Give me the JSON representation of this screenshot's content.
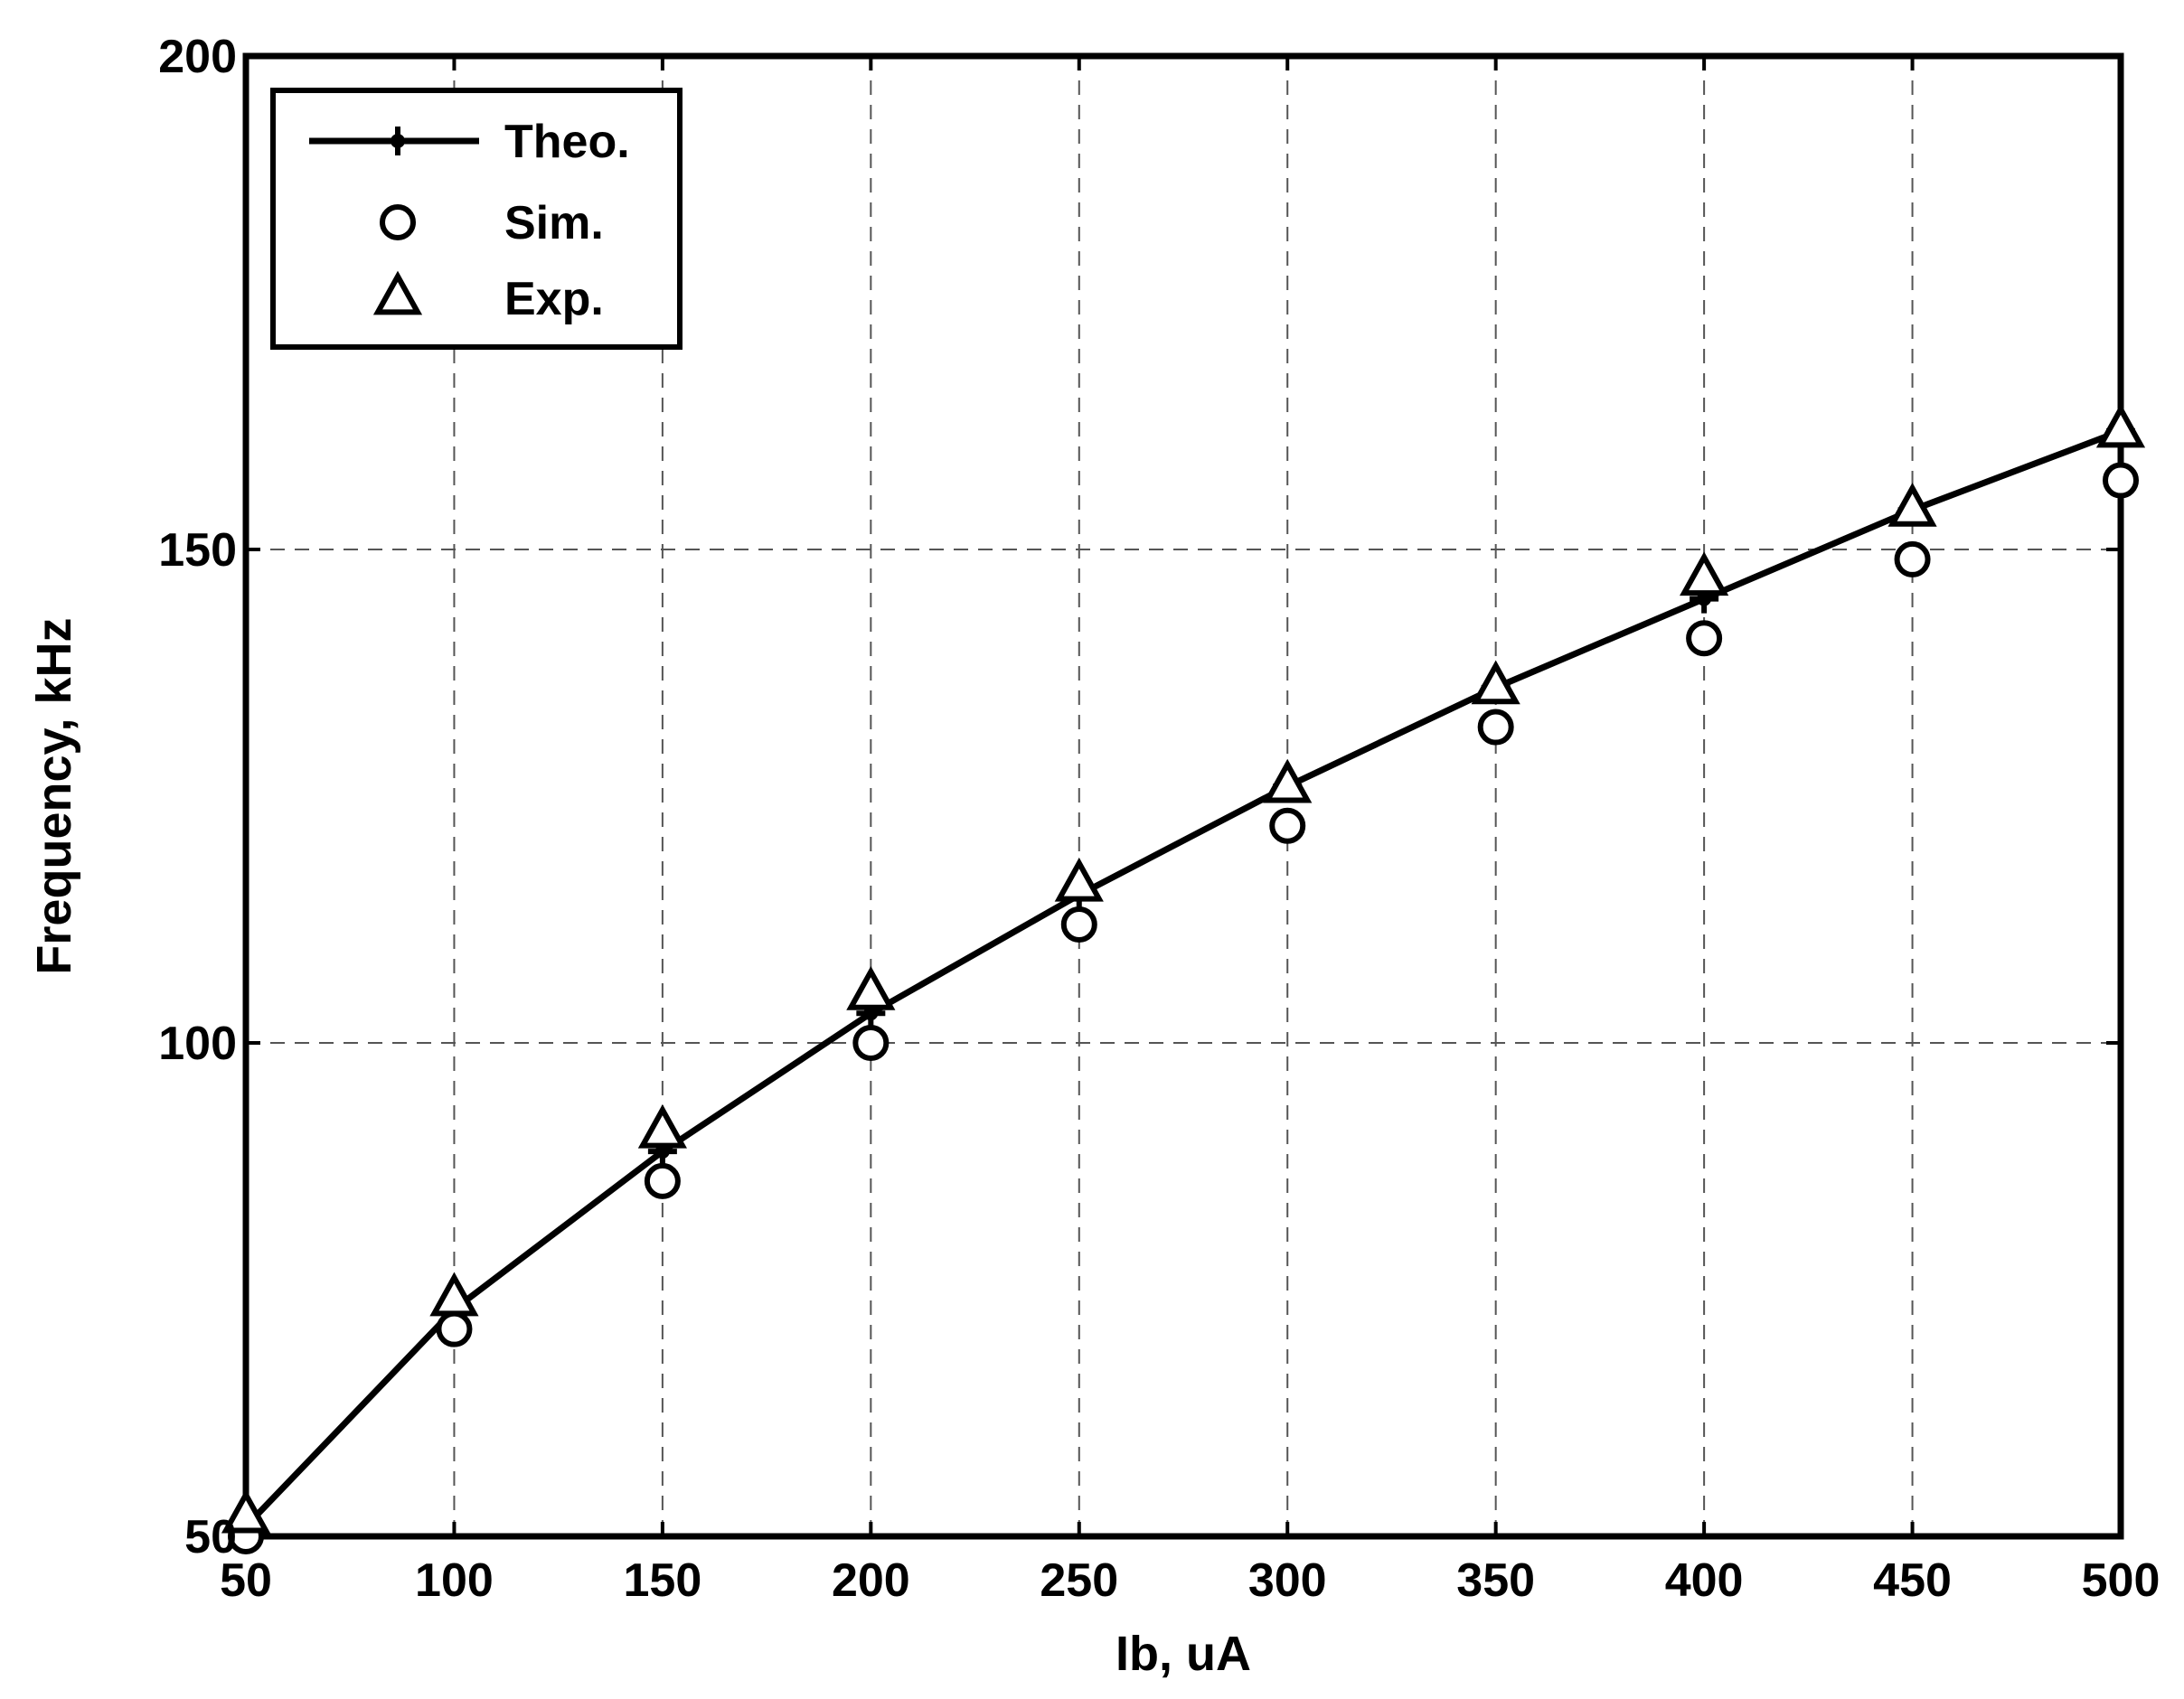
{
  "chart_data": {
    "type": "line",
    "title": "",
    "xlabel": "Ib, uA",
    "ylabel": "Frequency, kHz",
    "xlim": [
      50,
      500
    ],
    "ylim": [
      50,
      200
    ],
    "xticks": [
      50,
      100,
      150,
      200,
      250,
      300,
      350,
      400,
      450,
      500
    ],
    "yticks": [
      50,
      100,
      150,
      200
    ],
    "x_tick_labels": [
      "50",
      "100",
      "150",
      "200",
      "250",
      "300",
      "350",
      "400",
      "450",
      "500"
    ],
    "y_tick_labels": [
      "50",
      "100",
      "150",
      "200"
    ],
    "grid": true,
    "legend_position": "top-left",
    "x": [
      50,
      100,
      150,
      200,
      250,
      300,
      350,
      400,
      450,
      500
    ],
    "series": [
      {
        "name": "Theo.",
        "marker": "plus-dot",
        "line": "solid",
        "values": [
          51,
          73,
          89,
          103,
          115,
          126,
          136,
          145,
          154,
          162
        ]
      },
      {
        "name": "Sim.",
        "marker": "circle",
        "line": "none",
        "values": [
          50,
          71,
          86,
          100,
          112,
          122,
          132,
          141,
          149,
          157
        ]
      },
      {
        "name": "Exp.",
        "marker": "triangle",
        "line": "none",
        "values": [
          52,
          74,
          91,
          105,
          116,
          126,
          136,
          147,
          154,
          162
        ]
      }
    ]
  }
}
